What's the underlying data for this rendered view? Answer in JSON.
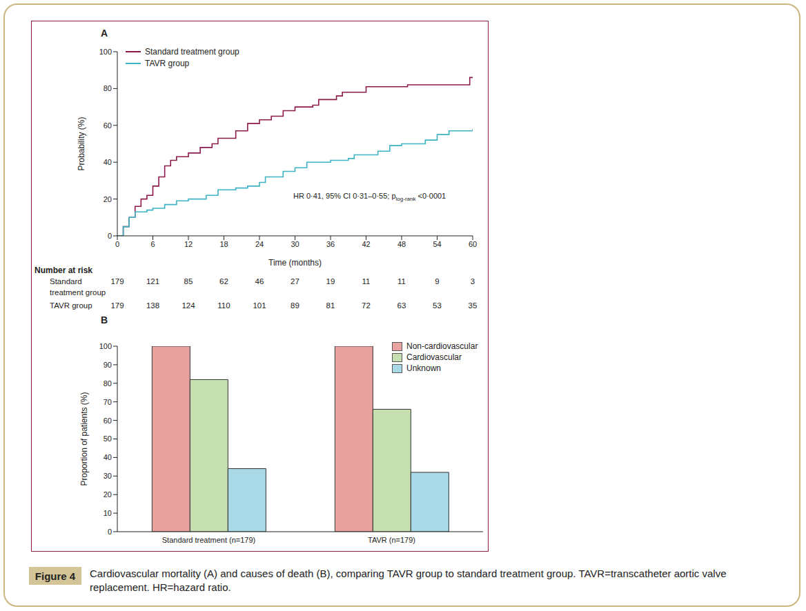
{
  "figure_label": "Figure 4",
  "caption": "Cardiovascular mortality (A) and causes of death (B), comparing TAVR group to standard treatment group. TAVR=transcatheter aortic valve replacement. HR=hazard ratio.",
  "chart_data": [
    {
      "panel": "A",
      "type": "line",
      "line_style": "step",
      "x_label": "Time (months)",
      "y_label": "Probability (%)",
      "xlim": [
        0,
        60
      ],
      "xticks": [
        0,
        6,
        12,
        18,
        24,
        30,
        36,
        42,
        48,
        54,
        60
      ],
      "ylim": [
        0,
        100
      ],
      "yticks": [
        0,
        20,
        40,
        60,
        80,
        100
      ],
      "legend": "top-left",
      "annotation": {
        "text": "HR 0·41, 95% CI 0·31–0·55; p",
        "subscript": "log-rank",
        "after": " <0·0001"
      },
      "series": [
        {
          "name": "Standard treatment group",
          "color": "#8b1a4a",
          "x": [
            0,
            1,
            2,
            3,
            4,
            5,
            6,
            7,
            8,
            9,
            10,
            12,
            14,
            16,
            17,
            20,
            22,
            24,
            26,
            28,
            30,
            33,
            34,
            37,
            38,
            42,
            49,
            59.5,
            60
          ],
          "values": [
            0,
            5,
            10,
            16,
            20,
            22,
            27,
            32,
            38,
            41,
            43,
            45,
            48,
            50,
            53,
            57,
            61,
            63,
            65,
            68,
            70,
            71,
            74,
            76,
            78,
            81,
            82,
            86,
            86
          ]
        },
        {
          "name": "TAVR group",
          "color": "#3cb3c3",
          "x": [
            0,
            1,
            2,
            3,
            5,
            6,
            8,
            10,
            12,
            15,
            17,
            20,
            22,
            24,
            25,
            28,
            30,
            32,
            36,
            39,
            40,
            44,
            46,
            48,
            52,
            54,
            56,
            60
          ],
          "values": [
            0,
            5,
            10,
            13,
            14,
            15,
            17,
            19,
            20,
            22,
            25,
            26,
            27,
            29,
            32,
            35,
            37,
            40,
            41,
            42,
            44,
            46,
            49,
            50,
            52,
            55,
            57,
            58
          ]
        }
      ],
      "risk_table": {
        "title": "Number at risk",
        "x": [
          0,
          6,
          12,
          18,
          24,
          30,
          36,
          42,
          48,
          54,
          60
        ],
        "rows": [
          {
            "name": "Standard treatment group",
            "values": [
              179,
              121,
              85,
              62,
              46,
              27,
              19,
              11,
              11,
              9,
              3
            ]
          },
          {
            "name": "TAVR group",
            "values": [
              179,
              138,
              124,
              110,
              101,
              89,
              81,
              72,
              63,
              53,
              35
            ]
          }
        ]
      }
    },
    {
      "panel": "B",
      "type": "bar",
      "y_label": "Proportion of patients (%)",
      "categories": [
        "Standard treatment (n=179)",
        "TAVR (n=179)"
      ],
      "ylim": [
        0,
        100
      ],
      "yticks": [
        0,
        10,
        20,
        30,
        40,
        50,
        60,
        70,
        80,
        90,
        100
      ],
      "legend": "top-right",
      "series": [
        {
          "name": "Non-cardiovascular",
          "color": "#e8a3a0",
          "values": [
            100,
            100
          ]
        },
        {
          "name": "Cardiovascular",
          "color": "#c6dfb1",
          "values": [
            82,
            66
          ]
        },
        {
          "name": "Unknown",
          "color": "#a9d8e6",
          "values": [
            34,
            32
          ]
        }
      ]
    }
  ]
}
